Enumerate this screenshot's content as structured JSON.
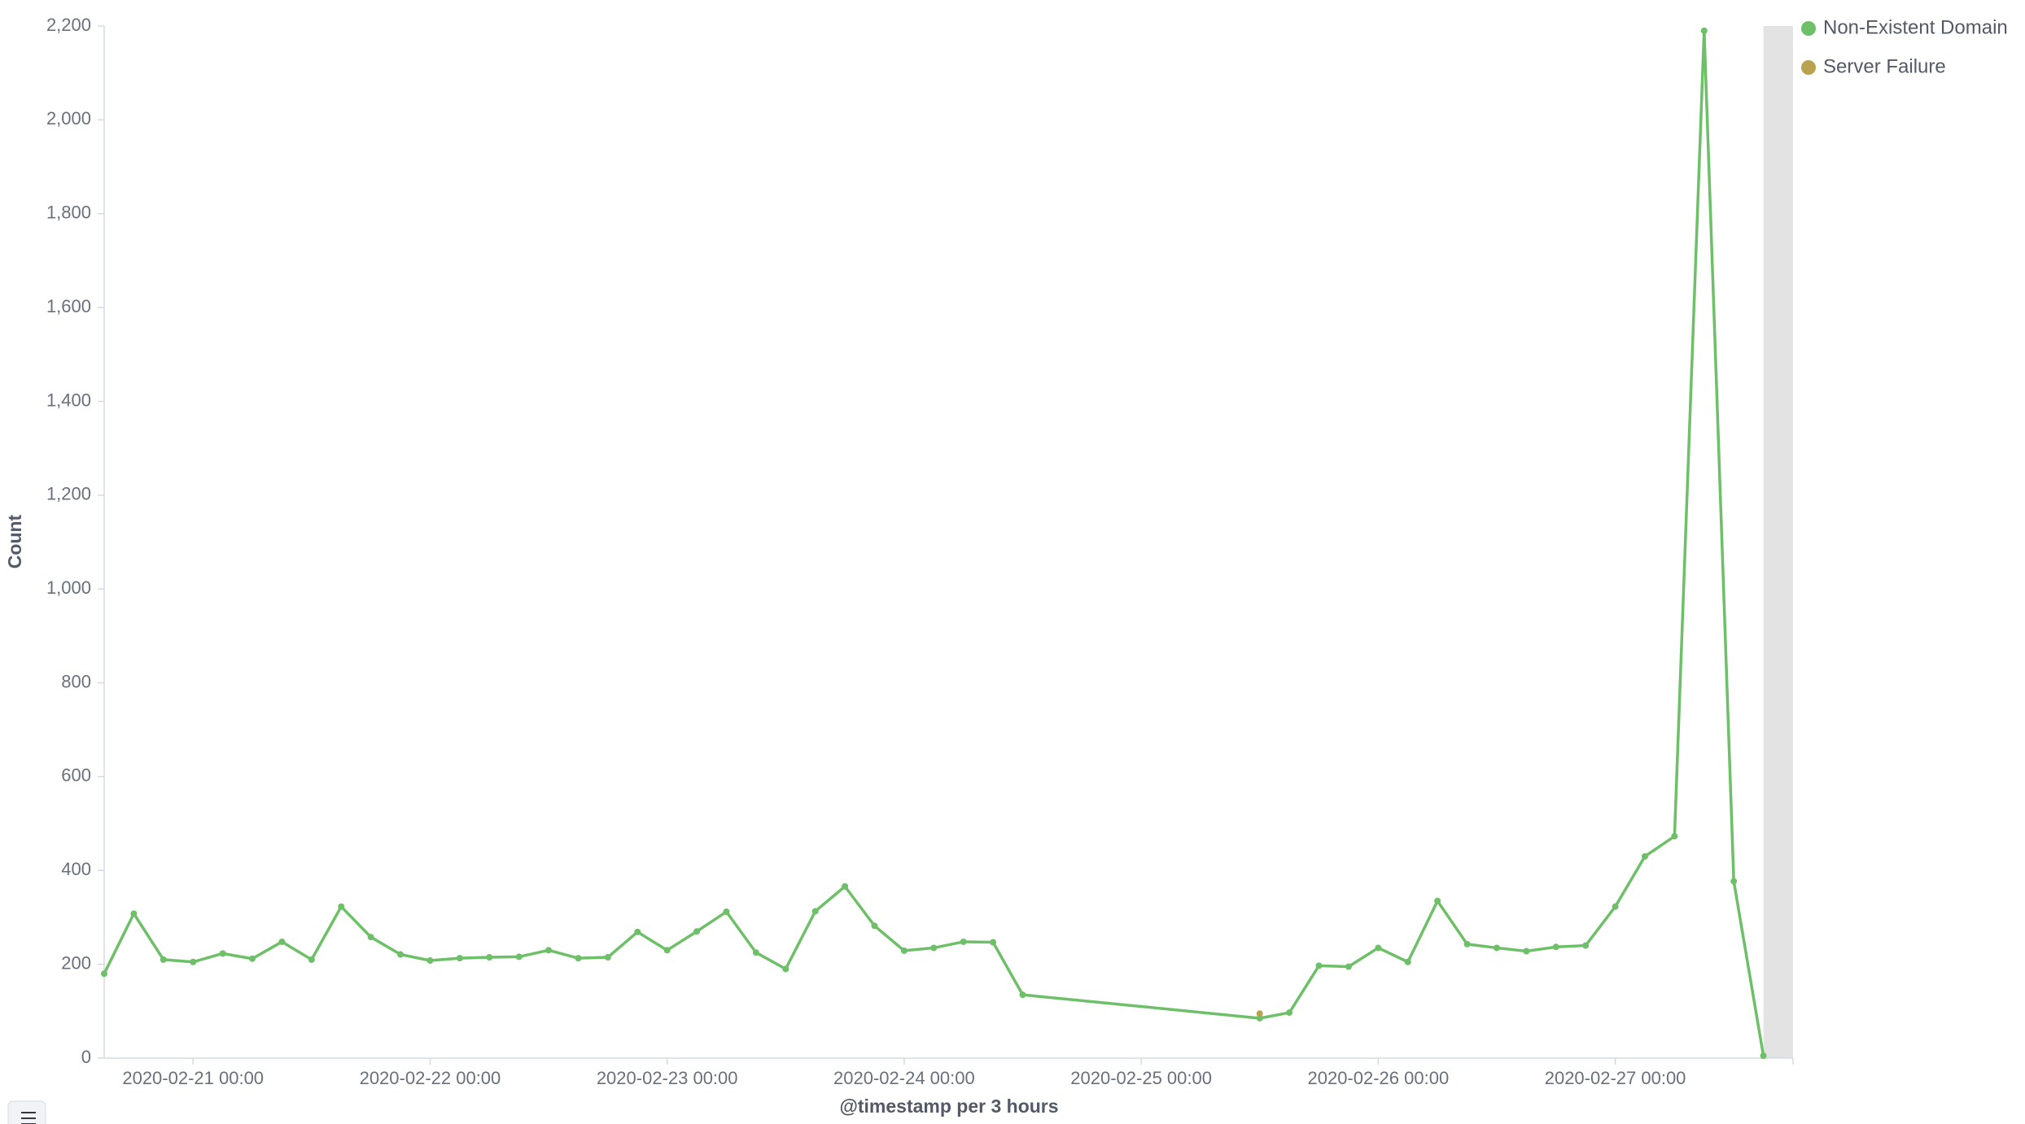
{
  "chart_data": {
    "type": "line",
    "y_label": "Count",
    "x_label": "@timestamp per 3 hours",
    "x": [
      "2020-02-20 15:00",
      "2020-02-20 18:00",
      "2020-02-20 21:00",
      "2020-02-21 00:00",
      "2020-02-21 03:00",
      "2020-02-21 06:00",
      "2020-02-21 09:00",
      "2020-02-21 12:00",
      "2020-02-21 15:00",
      "2020-02-21 18:00",
      "2020-02-21 21:00",
      "2020-02-22 00:00",
      "2020-02-22 03:00",
      "2020-02-22 06:00",
      "2020-02-22 09:00",
      "2020-02-22 12:00",
      "2020-02-22 15:00",
      "2020-02-22 18:00",
      "2020-02-22 21:00",
      "2020-02-23 00:00",
      "2020-02-23 03:00",
      "2020-02-23 06:00",
      "2020-02-23 09:00",
      "2020-02-23 12:00",
      "2020-02-23 15:00",
      "2020-02-23 18:00",
      "2020-02-23 21:00",
      "2020-02-24 00:00",
      "2020-02-24 03:00",
      "2020-02-24 06:00",
      "2020-02-24 09:00",
      "2020-02-24 12:00",
      "2020-02-25 12:00",
      "2020-02-25 15:00",
      "2020-02-25 18:00",
      "2020-02-25 21:00",
      "2020-02-26 00:00",
      "2020-02-26 03:00",
      "2020-02-26 06:00",
      "2020-02-26 09:00",
      "2020-02-26 12:00",
      "2020-02-26 15:00",
      "2020-02-26 18:00",
      "2020-02-26 21:00",
      "2020-02-27 00:00",
      "2020-02-27 03:00",
      "2020-02-27 06:00",
      "2020-02-27 09:00",
      "2020-02-27 12:00",
      "2020-02-27 15:00"
    ],
    "series": [
      {
        "name": "Non-Existent Domain",
        "color": "#54b399",
        "values": [
          180,
          308,
          210,
          205,
          223,
          212,
          248,
          210,
          323,
          258,
          221,
          208,
          213,
          215,
          216,
          230,
          213,
          215,
          269,
          230,
          270,
          312,
          225,
          190,
          313,
          366,
          282,
          229,
          235,
          248,
          247,
          135,
          85,
          97,
          197,
          195,
          235,
          205,
          335,
          243,
          235,
          228,
          237,
          240,
          323,
          430,
          473,
          2190,
          377,
          5
        ]
      },
      {
        "name": "Server Failure",
        "color": "#b9a34e",
        "values": [
          null,
          null,
          null,
          null,
          null,
          null,
          null,
          null,
          null,
          null,
          null,
          null,
          null,
          null,
          null,
          null,
          null,
          null,
          null,
          null,
          null,
          null,
          null,
          null,
          null,
          null,
          null,
          null,
          null,
          null,
          null,
          null,
          95,
          null,
          null,
          null,
          null,
          null,
          null,
          null,
          null,
          null,
          null,
          null,
          null,
          null,
          null,
          null,
          null,
          null
        ]
      }
    ],
    "xlim": [
      "2020-02-20 15:00",
      "2020-02-27 18:00"
    ],
    "xticks": [
      "2020-02-21 00:00",
      "2020-02-22 00:00",
      "2020-02-23 00:00",
      "2020-02-24 00:00",
      "2020-02-25 00:00",
      "2020-02-26 00:00",
      "2020-02-27 00:00"
    ],
    "ylim": [
      0,
      2200
    ],
    "yticks": [
      0,
      200,
      400,
      600,
      800,
      {
        "value": 1000,
        "label": "1,000"
      },
      {
        "value": 1200,
        "label": "1,200"
      },
      {
        "value": 1400,
        "label": "1,400"
      },
      {
        "value": 1600,
        "label": "1,600"
      },
      {
        "value": 1800,
        "label": "1,800"
      },
      {
        "value": 2000,
        "label": "2,000"
      },
      {
        "value": 2200,
        "label": "2,200"
      }
    ],
    "shaded_range": [
      "2020-02-27 15:00",
      "2020-02-27 18:00"
    ],
    "legend": "top-right"
  }
}
